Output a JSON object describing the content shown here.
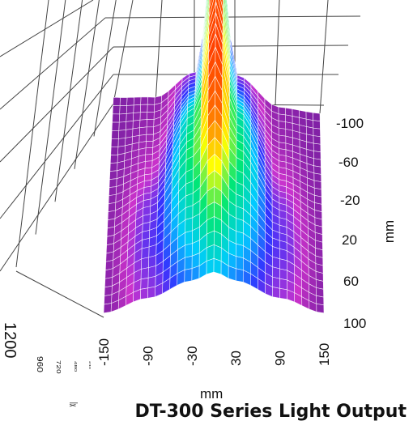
{
  "chart_data": {
    "type": "surface",
    "title": "DT-300 Series Light Output",
    "x_axis": {
      "label": "mm",
      "ticks": [
        "-150",
        "-90",
        "-30",
        "30",
        "90",
        "150"
      ],
      "range": [
        -150,
        150
      ]
    },
    "y_axis": {
      "label": "mm",
      "ticks": [
        "-100",
        "-60",
        "-20",
        "20",
        "60",
        "100"
      ],
      "range": [
        -100,
        100
      ]
    },
    "z_axis": {
      "label": "lx",
      "ticks": [
        "1200",
        "960",
        "720",
        "480",
        "240"
      ],
      "range": [
        0,
        1200
      ]
    },
    "colormap": [
      "#6a1b9a",
      "#cc33cc",
      "#3333ff",
      "#00ccff",
      "#00e676",
      "#ffff00",
      "#ff6600",
      "#ff2200"
    ],
    "peak": {
      "x": 0,
      "y": -20,
      "value": 1200
    },
    "series": [
      {
        "y": -100,
        "x": [
          -150,
          -90,
          -30,
          0,
          30,
          90,
          150
        ],
        "z": [
          40,
          60,
          240,
          1150,
          240,
          60,
          40
        ]
      },
      {
        "y": -60,
        "x": [
          -150,
          -90,
          -30,
          0,
          30,
          90,
          150
        ],
        "z": [
          40,
          90,
          420,
          1180,
          420,
          90,
          40
        ]
      },
      {
        "y": -20,
        "x": [
          -150,
          -90,
          -30,
          0,
          30,
          90,
          150
        ],
        "z": [
          50,
          160,
          640,
          1200,
          640,
          160,
          50
        ]
      },
      {
        "y": 20,
        "x": [
          -150,
          -90,
          -30,
          0,
          30,
          90,
          150
        ],
        "z": [
          60,
          260,
          720,
          1050,
          720,
          260,
          60
        ]
      },
      {
        "y": 60,
        "x": [
          -150,
          -90,
          -30,
          0,
          30,
          90,
          150
        ],
        "z": [
          60,
          300,
          600,
          760,
          600,
          300,
          60
        ]
      },
      {
        "y": 100,
        "x": [
          -150,
          -90,
          -30,
          0,
          30,
          90,
          150
        ],
        "z": [
          50,
          220,
          420,
          520,
          420,
          220,
          50
        ]
      }
    ],
    "grid": true
  }
}
